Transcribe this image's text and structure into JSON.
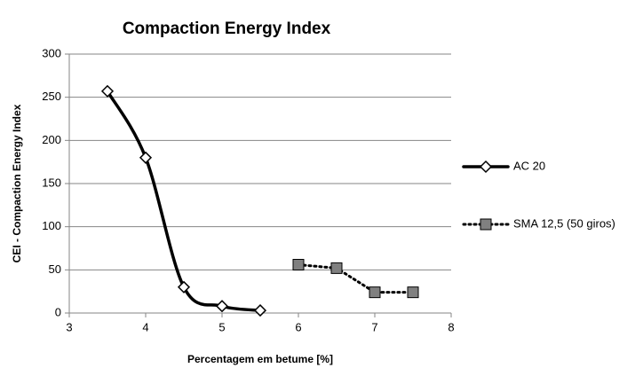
{
  "chart_data": {
    "type": "scatter",
    "title": "Compaction Energy Index",
    "xlabel": "Percentagem em betume [%]",
    "ylabel": "CEI - Compaction Energy Index",
    "xlim": [
      3,
      8
    ],
    "xticks": [
      3,
      4,
      5,
      6,
      7,
      8
    ],
    "ylim": [
      0,
      300
    ],
    "yticks": [
      0,
      50,
      100,
      150,
      200,
      250,
      300
    ],
    "grid": true,
    "legend": "right",
    "series": [
      {
        "name": "AC 20",
        "color": "#000000",
        "line": "solid-smooth",
        "marker": "diamond",
        "x": [
          3.5,
          4,
          4.5,
          5,
          5.5
        ],
        "values": [
          257,
          180,
          30,
          8,
          3
        ]
      },
      {
        "name": "SMA 12,5 (50 giros)",
        "color": "#808080",
        "line": "dotted",
        "marker": "square",
        "x": [
          6,
          6.5,
          7,
          7.5
        ],
        "values": [
          56,
          52,
          24,
          24
        ]
      }
    ]
  }
}
